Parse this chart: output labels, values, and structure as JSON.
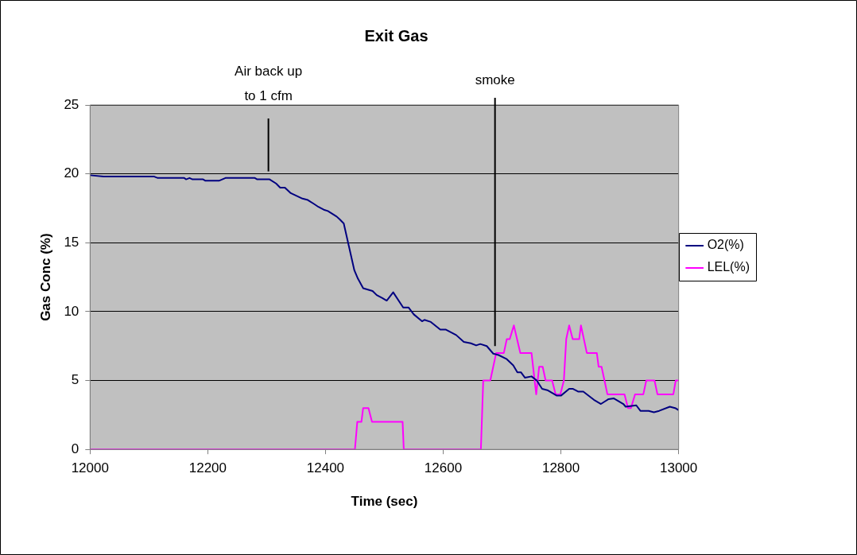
{
  "chart_data": {
    "type": "line",
    "title": "Exit Gas",
    "xlabel": "Time (sec)",
    "ylabel": "Gas Conc (%)",
    "xlim": [
      12000,
      13000
    ],
    "xticks": [
      12000,
      12200,
      12400,
      12600,
      12800,
      13000
    ],
    "ylim": [
      0,
      25
    ],
    "yticks": [
      0,
      5,
      10,
      15,
      20,
      25
    ],
    "grid": "y",
    "legend": "right",
    "marker": "none",
    "line_style": "solid",
    "ref_lines": [
      {
        "axis": "x",
        "value": 12303,
        "label": "Air back up\nto 1 cfm"
      },
      {
        "axis": "x",
        "value": 12688,
        "label": "smoke"
      }
    ],
    "series": [
      {
        "name": "O2(%)",
        "color": "#000080",
        "x": [
          12000,
          12023,
          12109,
          12115,
          12160,
          12163,
          12169,
          12174,
          12192,
          12196,
          12219,
          12230,
          12280,
          12284,
          12305,
          12316,
          12323,
          12331,
          12341,
          12361,
          12370,
          12381,
          12388,
          12397,
          12404,
          12419,
          12424,
          12431,
          12440,
          12449,
          12455,
          12464,
          12480,
          12487,
          12496,
          12504,
          12515,
          12532,
          12541,
          12550,
          12564,
          12568,
          12579,
          12595,
          12604,
          12622,
          12635,
          12647,
          12656,
          12663,
          12674,
          12685,
          12694,
          12708,
          12719,
          12726,
          12732,
          12739,
          12750,
          12759,
          12768,
          12777,
          12793,
          12800,
          12814,
          12820,
          12829,
          12838,
          12856,
          12868,
          12881,
          12890,
          12906,
          12910,
          12928,
          12935,
          12949,
          12958,
          12967,
          12985,
          12994,
          13000
        ],
        "values": [
          19.9,
          19.8,
          19.8,
          19.7,
          19.7,
          19.6,
          19.7,
          19.6,
          19.6,
          19.5,
          19.5,
          19.7,
          19.7,
          19.6,
          19.6,
          19.3,
          19.0,
          19.0,
          18.6,
          18.2,
          18.1,
          17.8,
          17.6,
          17.4,
          17.3,
          16.9,
          16.7,
          16.4,
          14.7,
          13.0,
          12.4,
          11.7,
          11.5,
          11.2,
          11.0,
          10.8,
          11.4,
          10.3,
          10.3,
          9.8,
          9.3,
          9.4,
          9.25,
          8.7,
          8.7,
          8.3,
          7.8,
          7.7,
          7.55,
          7.65,
          7.5,
          6.95,
          6.85,
          6.55,
          6.1,
          5.6,
          5.6,
          5.2,
          5.3,
          5.0,
          4.4,
          4.3,
          3.9,
          3.9,
          4.4,
          4.4,
          4.2,
          4.2,
          3.6,
          3.3,
          3.65,
          3.7,
          3.3,
          3.1,
          3.2,
          2.8,
          2.8,
          2.7,
          2.8,
          3.1,
          3.0,
          2.85
        ]
      },
      {
        "name": "LEL(%)",
        "color": "#ff00ff",
        "x": [
          12000,
          12450,
          12454,
          12461,
          12464,
          12473,
          12479,
          12531,
          12533,
          12664,
          12668,
          12680,
          12690,
          12703,
          12708,
          12713,
          12720,
          12731,
          12750,
          12758,
          12763,
          12769,
          12774,
          12785,
          12791,
          12799,
          12805,
          12809,
          12814,
          12820,
          12831,
          12834,
          12844,
          12861,
          12864,
          12869,
          12879,
          12908,
          12914,
          12919,
          12926,
          12940,
          12945,
          12959,
          12964,
          12991,
          12995,
          13000
        ],
        "values": [
          0,
          0,
          2,
          2,
          3,
          3,
          2,
          2,
          0,
          0,
          5,
          5,
          7,
          7,
          8,
          8,
          9,
          7,
          7,
          4,
          6,
          6,
          5,
          5,
          4,
          4,
          5,
          8,
          9,
          8,
          8,
          9,
          7,
          7,
          6,
          6,
          4,
          4,
          3,
          3,
          4,
          4,
          5,
          5,
          4,
          4,
          5,
          5
        ]
      }
    ]
  }
}
